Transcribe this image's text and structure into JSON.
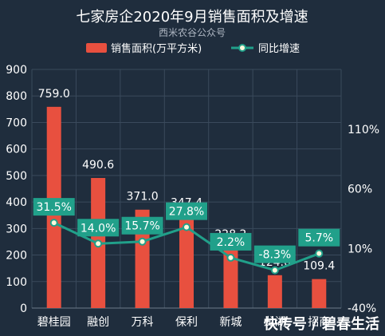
{
  "chart_data": {
    "type": "bar",
    "title": "七家房企2020年9月销售面积及增速",
    "subtitle": "西米农谷公众号",
    "categories": [
      "碧桂园",
      "融创",
      "万科",
      "保利",
      "新城",
      "龙湖",
      "招商"
    ],
    "series": [
      {
        "name": "销售面积(万平方米)",
        "type": "bar",
        "axis": "left",
        "values": [
          759.0,
          490.6,
          371.0,
          347.4,
          228.2,
          124.0,
          109.4
        ],
        "labels": [
          "759.0",
          "490.6",
          "371.0",
          "347.4",
          "228.2",
          "124.0",
          "109.4"
        ],
        "color": "#e8503f"
      },
      {
        "name": "同比增速",
        "type": "line",
        "axis": "right",
        "values": [
          31.5,
          14.0,
          15.7,
          27.8,
          2.2,
          -8.3,
          5.7
        ],
        "labels": [
          "31.5%",
          "14.0%",
          "15.7%",
          "27.8%",
          "2.2%",
          "-8.3%",
          "5.7%"
        ],
        "color": "#21a08a"
      }
    ],
    "yLeft": {
      "min": 0,
      "max": 900,
      "ticks": [
        0,
        100,
        200,
        300,
        400,
        500,
        600,
        700,
        800,
        900
      ]
    },
    "yRight": {
      "min": -40,
      "max": 160,
      "ticks": [
        -40,
        10,
        60,
        110
      ],
      "tickLabels": [
        "-40%",
        "10%",
        "60%",
        "110%"
      ]
    },
    "legend": "top-center",
    "grid": true
  },
  "watermark": "快传号 / 碧春生活",
  "colors": {
    "background": "#1f2d3d",
    "bar": "#e8503f",
    "line": "#21a08a",
    "grid": "#3a4a5c"
  }
}
